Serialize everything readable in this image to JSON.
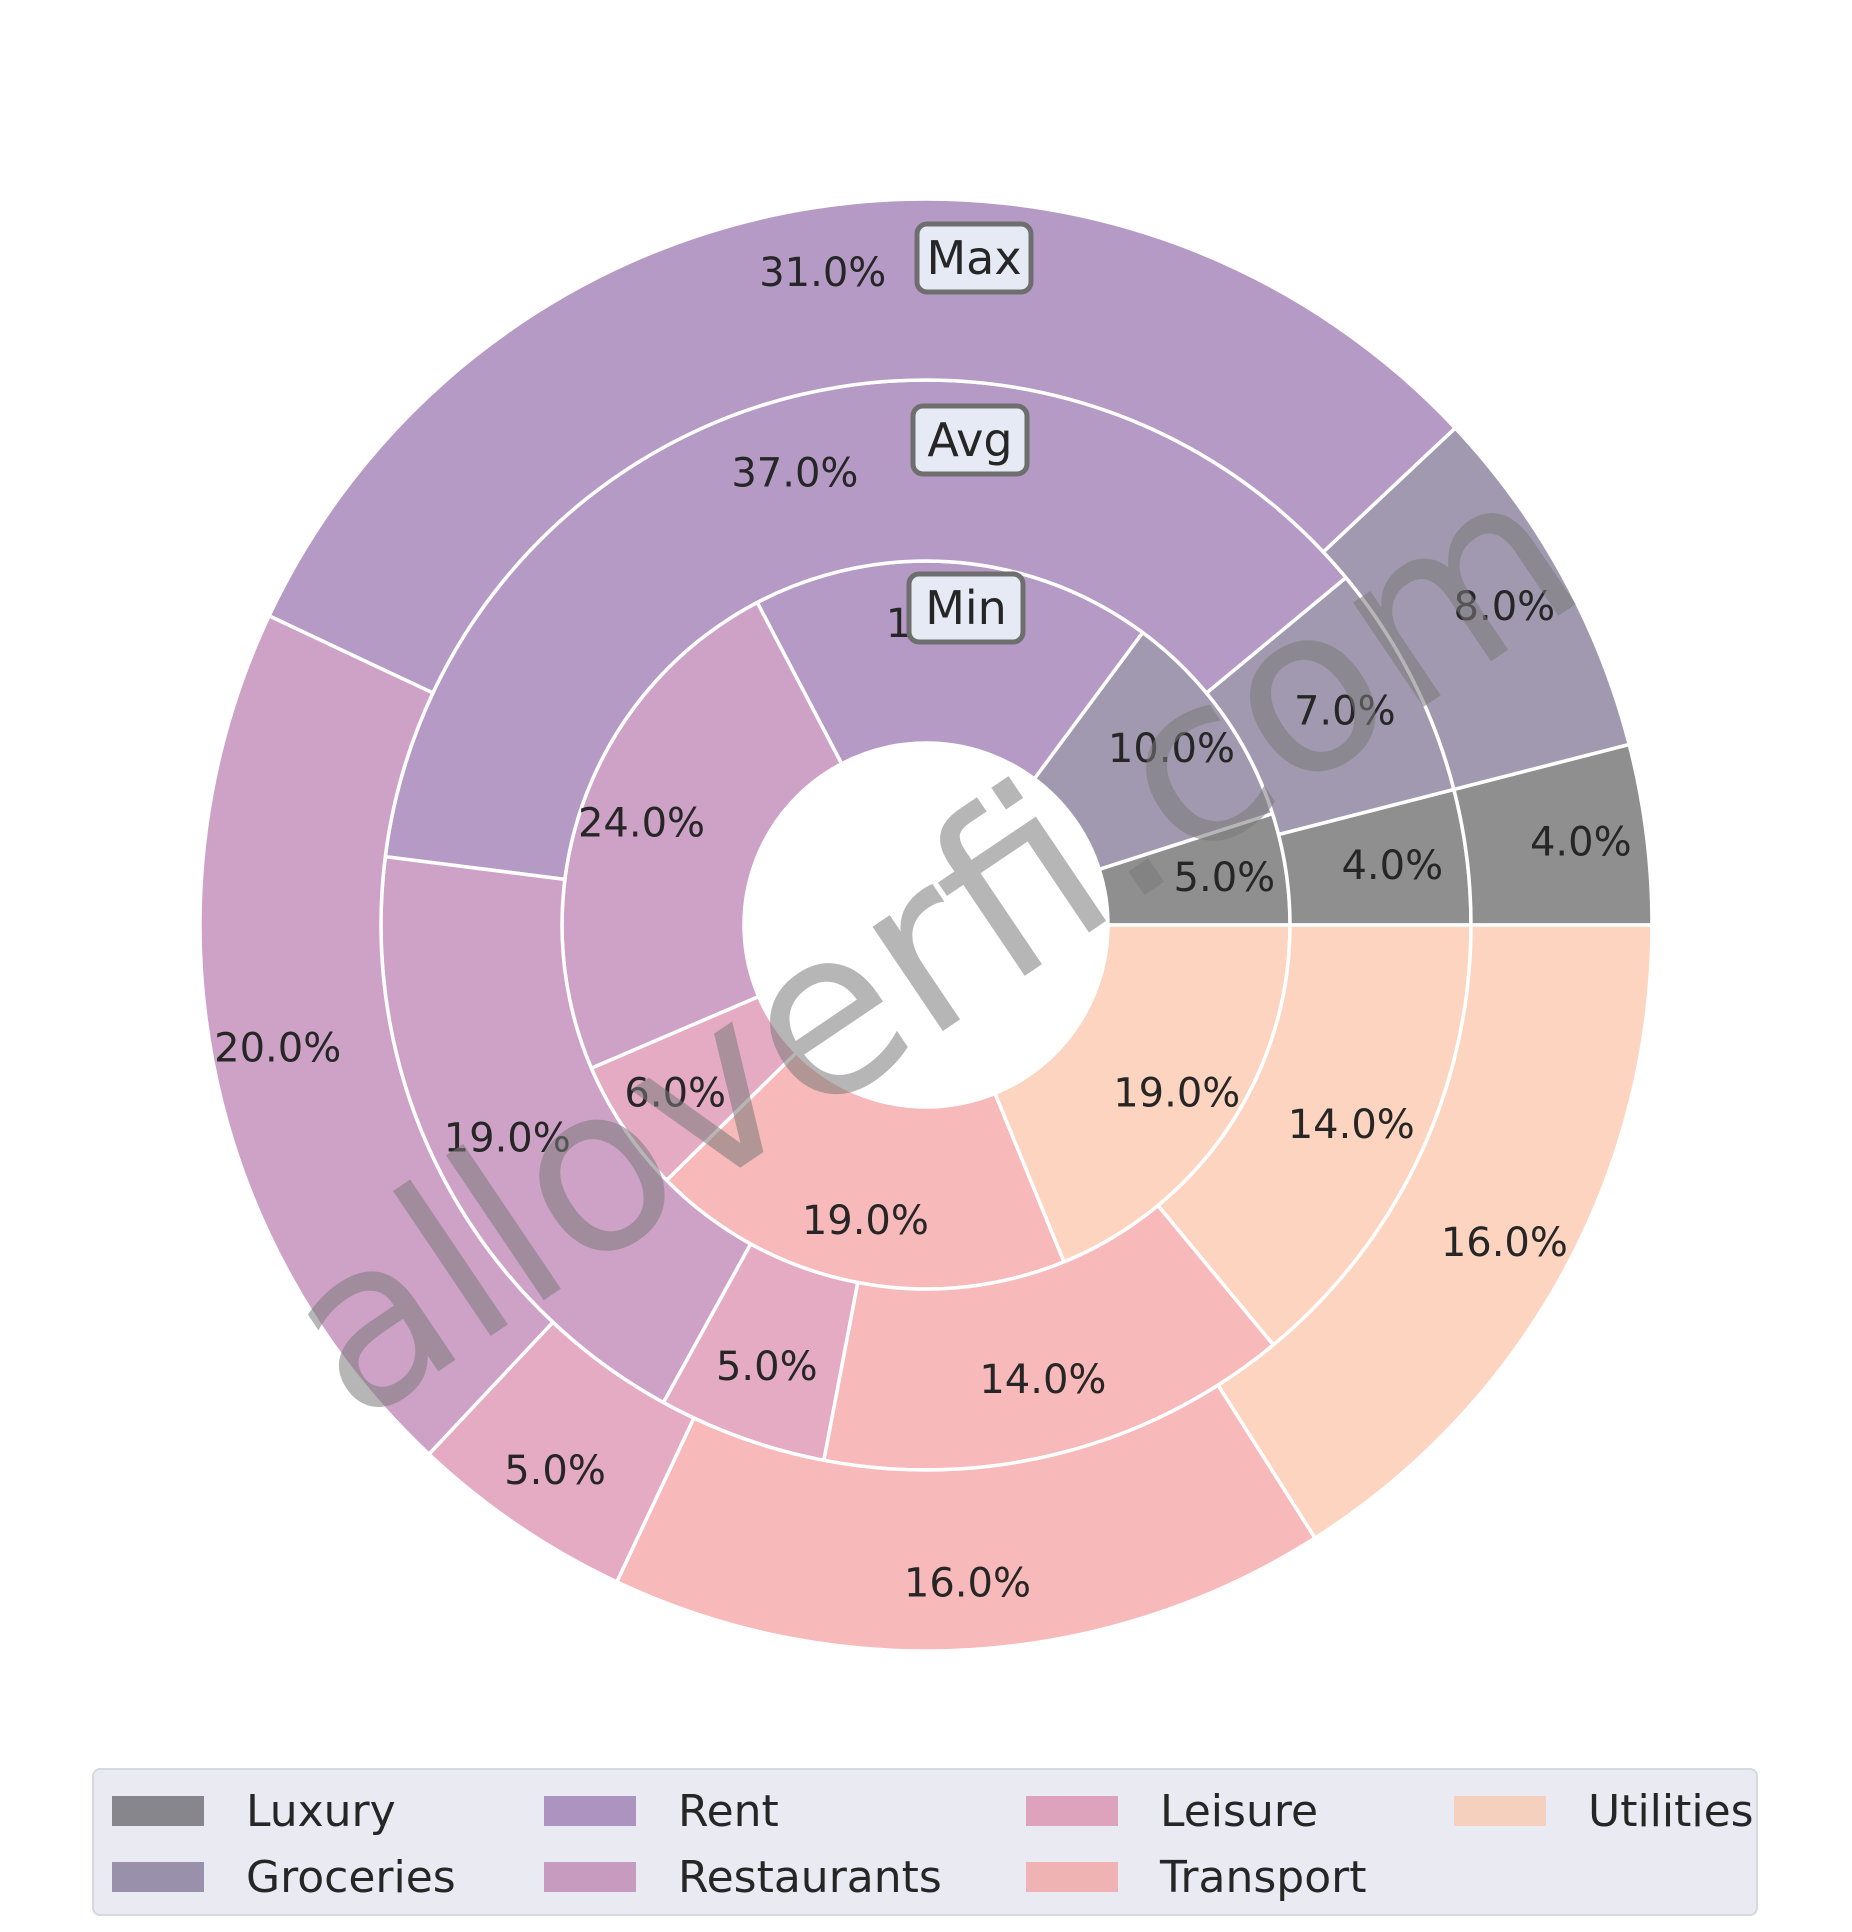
{
  "chart_data": {
    "type": "pie",
    "subtype": "nested donut",
    "categories": [
      "Luxury",
      "Groceries",
      "Rent",
      "Restaurants",
      "Leisure",
      "Transport",
      "Utilities"
    ],
    "colors": {
      "Luxury": "#8f8f8f",
      "Groceries": "#a099b0",
      "Rent": "#b69ac6",
      "Restaurants": "#cea2c7",
      "Leisure": "#e5abc2",
      "Transport": "#f7b9b9",
      "Utilities": "#fdd4c0"
    },
    "series": [
      {
        "name": "Min",
        "values": [
          5.0,
          10.0,
          18.0,
          24.0,
          6.0,
          19.0,
          19.0
        ],
        "labels": [
          "5.0%",
          "10.0%",
          "18.0%",
          "24.0%",
          "6.0%",
          "19.0%",
          "19.0%"
        ]
      },
      {
        "name": "Avg",
        "values": [
          4.0,
          7.0,
          37.0,
          19.0,
          5.0,
          14.0,
          14.0
        ],
        "labels": [
          "4.0%",
          "7.0%",
          "37.0%",
          "19.0%",
          "5.0%",
          "14.0%",
          "14.0%"
        ]
      },
      {
        "name": "Max",
        "values": [
          4.0,
          8.0,
          31.0,
          20.0,
          5.0,
          16.0,
          16.0
        ],
        "labels": [
          "4.0%",
          "8.0%",
          "31.0%",
          "20.0%",
          "5.0%",
          "16.0%",
          "16.0%"
        ]
      }
    ],
    "ring_order": "inner to outer",
    "start_angle_deg": 0,
    "direction": "counterclockwise",
    "legend": {
      "placement": "bottom",
      "columns": 4,
      "entries": [
        "Luxury",
        "Groceries",
        "Rent",
        "Restaurants",
        "Leisure",
        "Transport",
        "Utilities"
      ],
      "colors": [
        "#87868d",
        "#9990ab",
        "#ad93c0",
        "#c79bc0",
        "#dda3bd",
        "#f0b3b4",
        "#f6d0bf"
      ]
    }
  },
  "watermark": "alloverfi.com"
}
